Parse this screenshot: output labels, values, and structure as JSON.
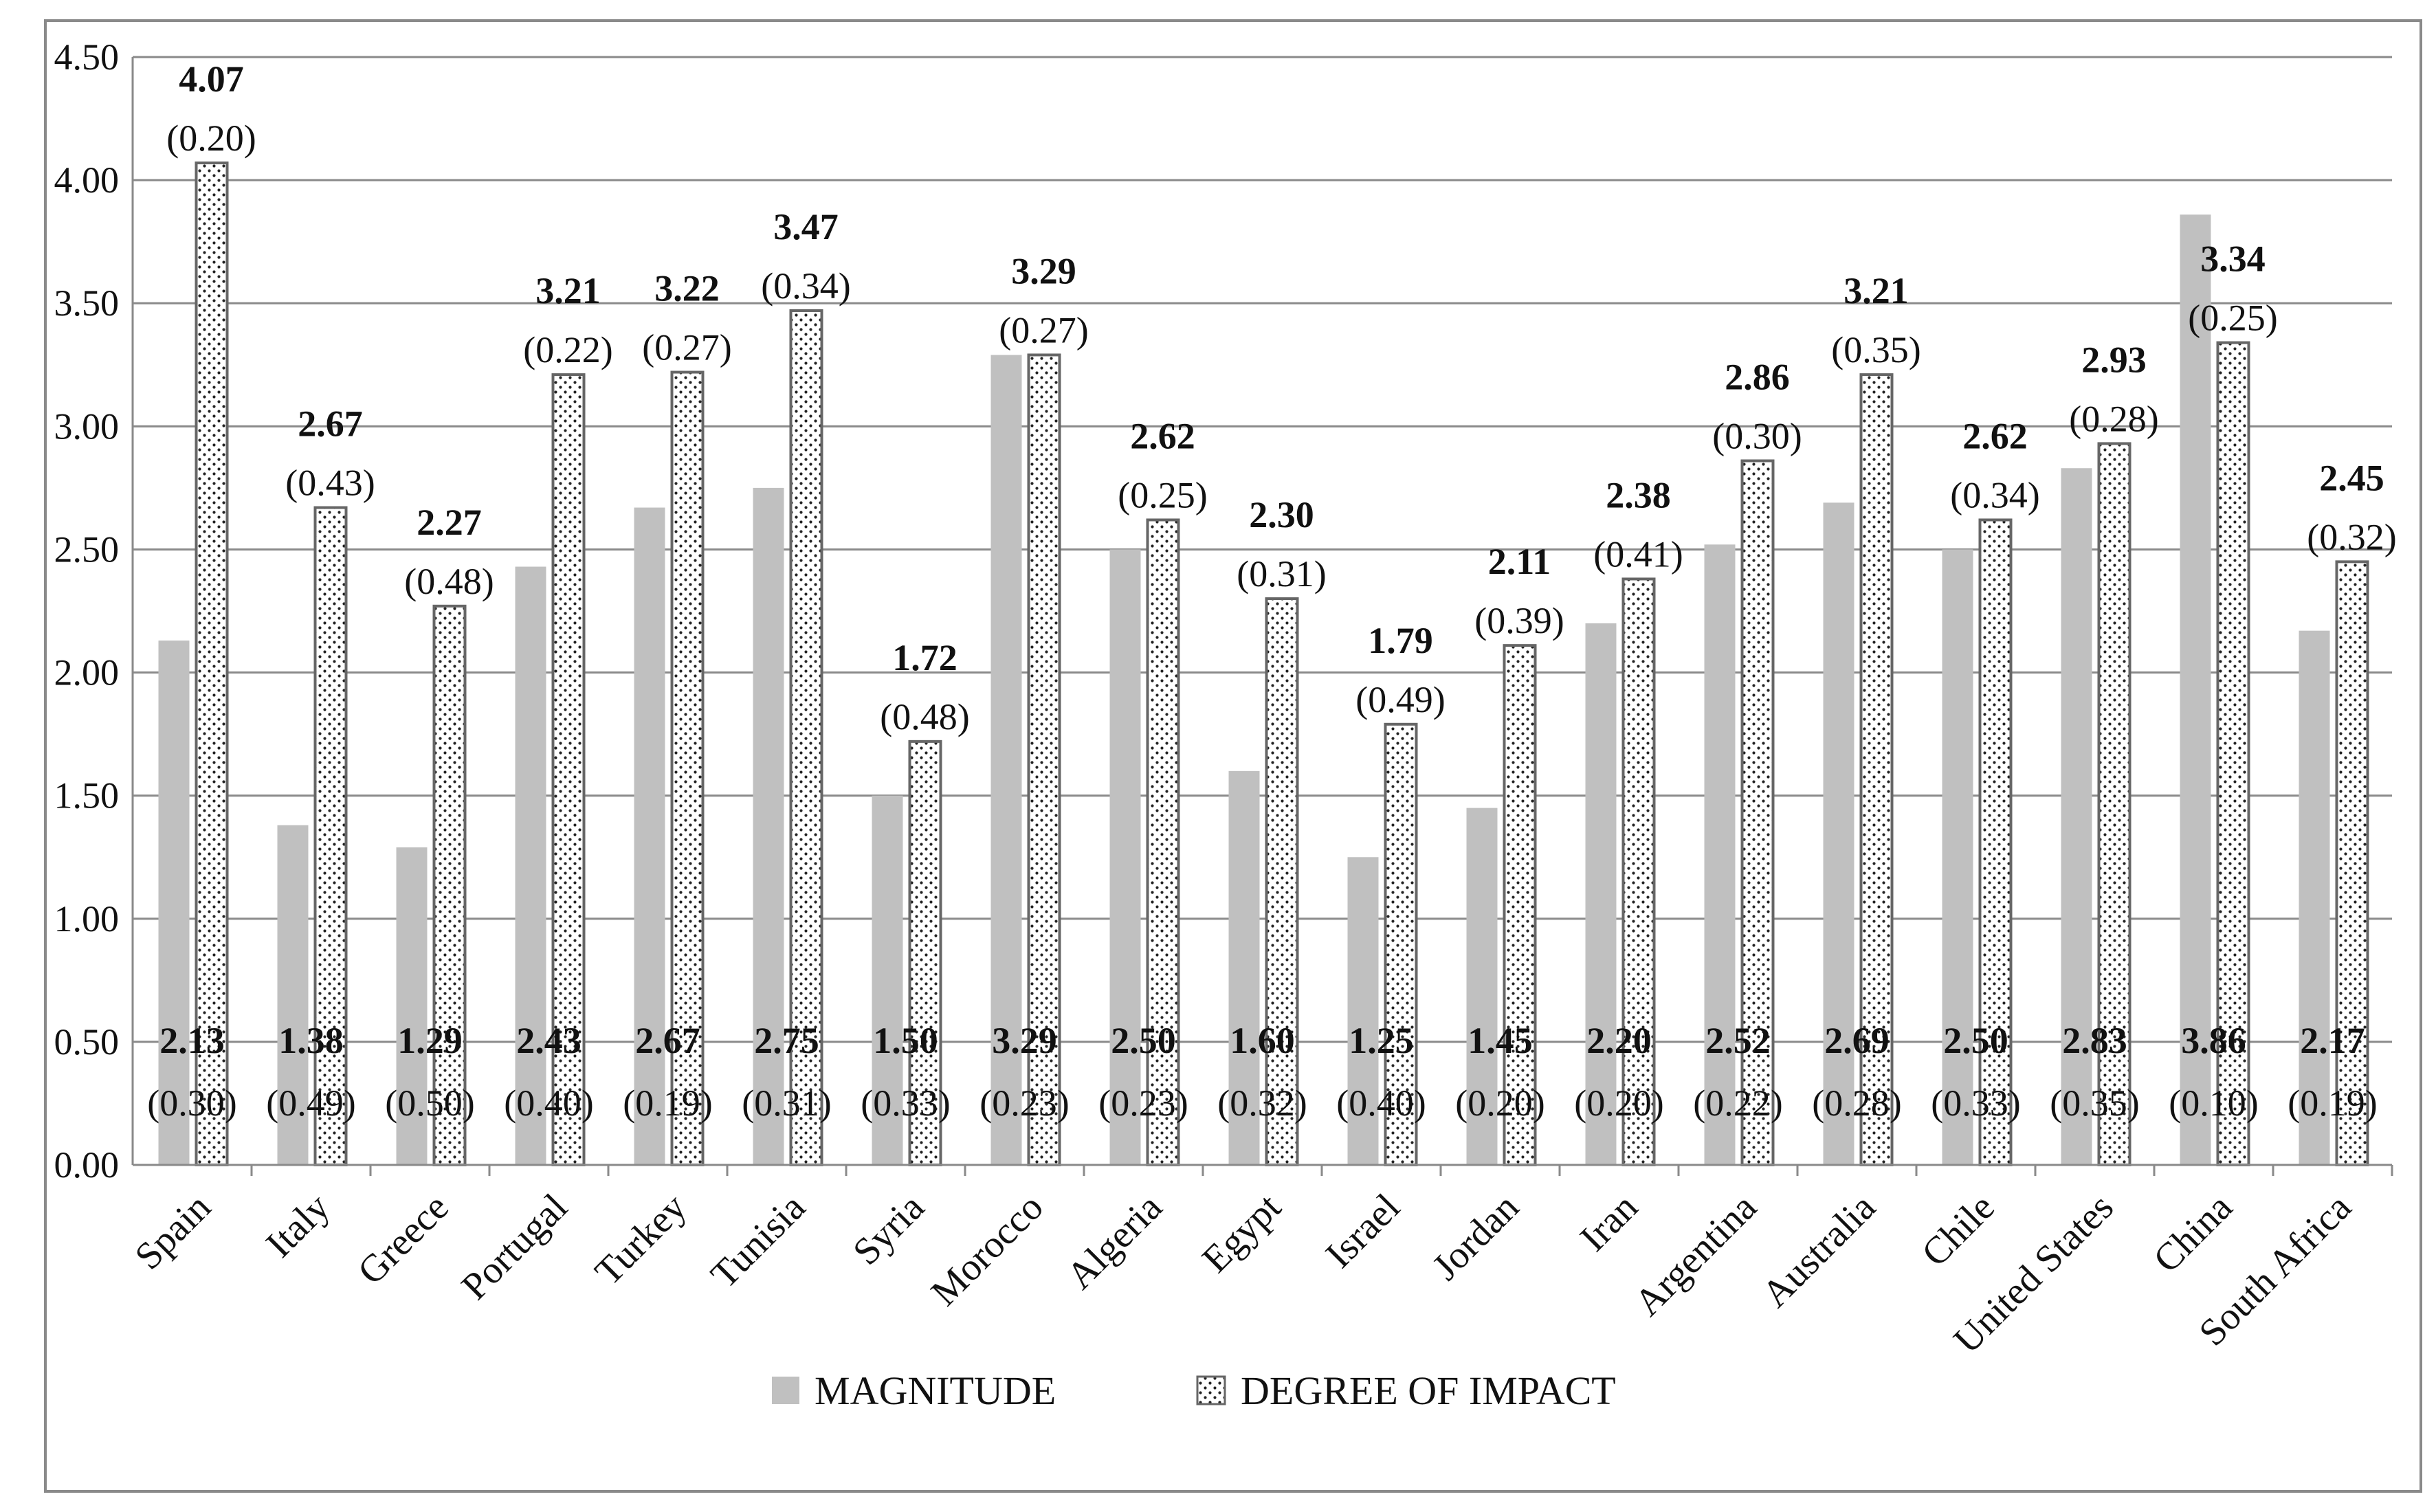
{
  "chart_data": {
    "type": "bar",
    "title": "",
    "xlabel": "",
    "ylabel": "",
    "ylim": [
      0,
      4.5
    ],
    "yticks": [
      "0.00",
      "0.50",
      "1.00",
      "1.50",
      "2.00",
      "2.50",
      "3.00",
      "3.50",
      "4.00",
      "4.50"
    ],
    "grid": true,
    "legend_position": "bottom",
    "categories": [
      "Spain",
      "Italy",
      "Greece",
      "Portugal",
      "Turkey",
      "Tunisia",
      "Syria",
      "Morocco",
      "Algeria",
      "Egypt",
      "Israel",
      "Jordan",
      "Iran",
      "Argentina",
      "Australia",
      "Chile",
      "United States",
      "China",
      "South Africa"
    ],
    "series": [
      {
        "name": "MAGNITUDE",
        "color": "#c0c0c0",
        "pattern": "solid",
        "values": [
          2.13,
          1.38,
          1.29,
          2.43,
          2.67,
          2.75,
          1.5,
          3.29,
          2.5,
          1.6,
          1.25,
          1.45,
          2.2,
          2.52,
          2.69,
          2.5,
          2.83,
          3.86,
          2.17
        ],
        "labels": [
          "2.13",
          "1.38",
          "1.29",
          "2.43",
          "2.67",
          "2.75",
          "1.50",
          "3.29",
          "2.50",
          "1.60",
          "1.25",
          "1.45",
          "2.20",
          "2.52",
          "2.69",
          "2.50",
          "2.83",
          "3.86",
          "2.17"
        ],
        "sd_labels": [
          "(0.30)",
          "(0.49)",
          "(0.50)",
          "(0.40)",
          "(0.19)",
          "(0.31)",
          "(0.33)",
          "(0.23)",
          "(0.23)",
          "(0.32)",
          "(0.40)",
          "(0.20)",
          "(0.20)",
          "(0.22)",
          "(0.28)",
          "(0.33)",
          "(0.35)",
          "(0.10)",
          "(0.19)"
        ]
      },
      {
        "name": "DEGREE OF IMPACT",
        "color": "#ffffff",
        "pattern": "dotted",
        "values": [
          4.07,
          2.67,
          2.27,
          3.21,
          3.22,
          3.47,
          1.72,
          3.29,
          2.62,
          2.3,
          1.79,
          2.11,
          2.38,
          2.86,
          3.21,
          2.62,
          2.93,
          3.34,
          2.45
        ],
        "labels": [
          "4.07",
          "2.67",
          "2.27",
          "3.21",
          "3.22",
          "3.47",
          "1.72",
          "3.29",
          "2.62",
          "2.30",
          "1.79",
          "2.11",
          "2.38",
          "2.86",
          "3.21",
          "2.62",
          "2.93",
          "3.34",
          "2.45"
        ],
        "sd_labels": [
          "(0.20)",
          "(0.43)",
          "(0.48)",
          "(0.22)",
          "(0.27)",
          "(0.34)",
          "(0.48)",
          "(0.27)",
          "(0.25)",
          "(0.31)",
          "(0.49)",
          "(0.39)",
          "(0.41)",
          "(0.30)",
          "(0.35)",
          "(0.34)",
          "(0.28)",
          "(0.25)",
          "(0.32)"
        ]
      }
    ]
  }
}
